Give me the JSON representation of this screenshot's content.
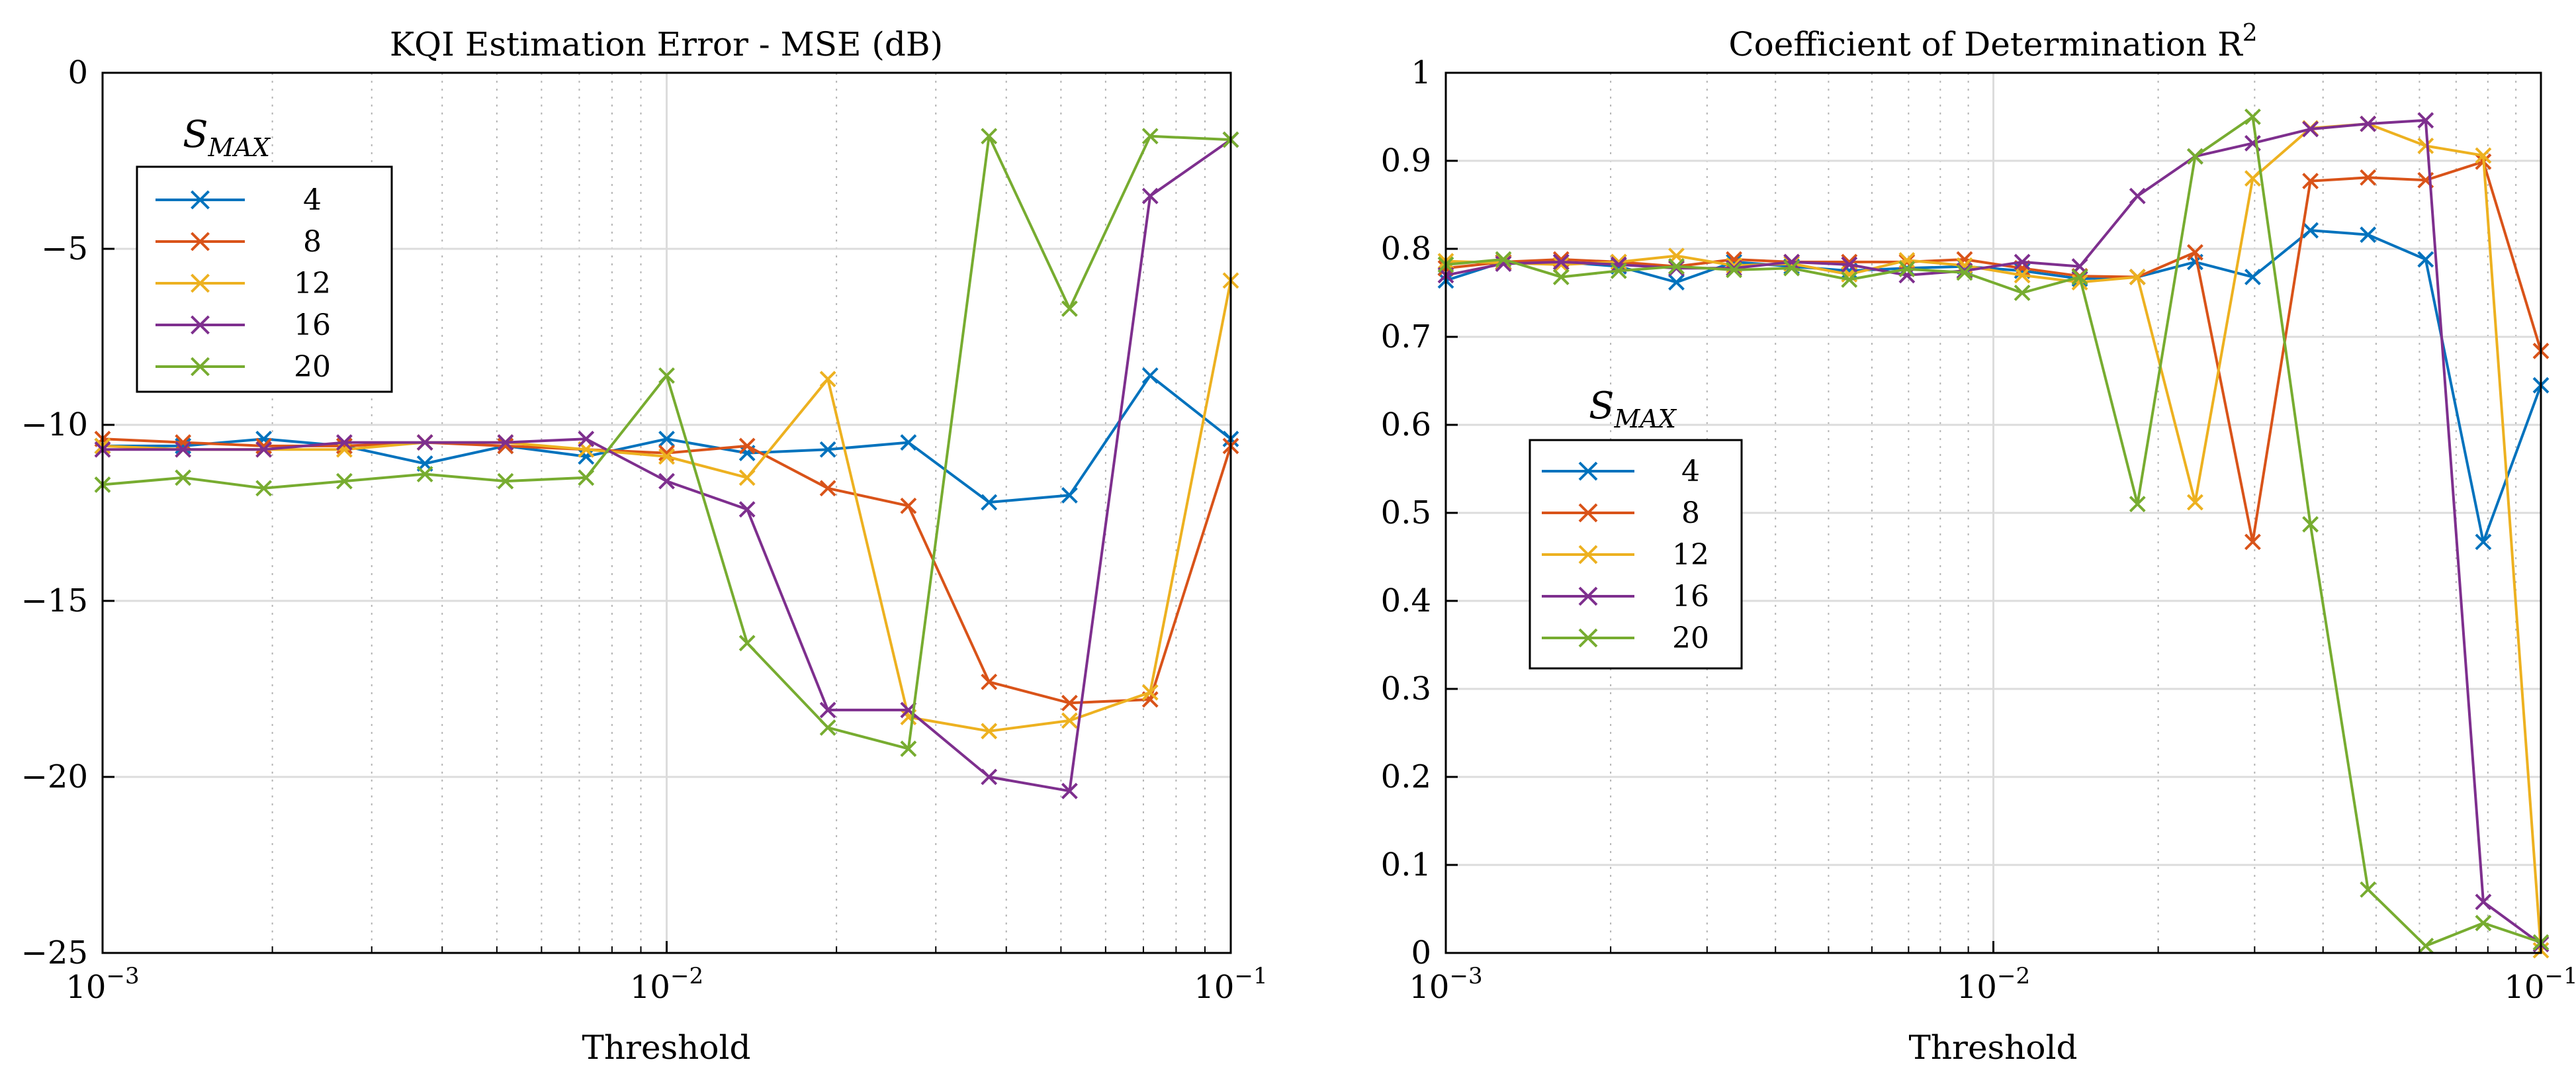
{
  "chart_data": [
    {
      "type": "line",
      "title": "KQI Estimation Error - MSE (dB)",
      "xlabel": "Threshold",
      "ylabel": "",
      "xscale": "log",
      "xlim": [
        0.001,
        0.1
      ],
      "ylim": [
        -25,
        0
      ],
      "yticks": [
        "0",
        "−5",
        "−10",
        "−15",
        "−20",
        "−25"
      ],
      "xticks": [
        {
          "base": "10",
          "exp": "−3"
        },
        {
          "base": "10",
          "exp": "−2"
        },
        {
          "base": "10",
          "exp": "−1"
        }
      ],
      "grid": true,
      "legend": {
        "title_main": "S",
        "title_sub": "MAX",
        "position": "top-left"
      },
      "x": [
        0.001,
        0.001389,
        0.001931,
        0.002683,
        0.003728,
        0.005179,
        0.007197,
        0.01,
        0.01389,
        0.01931,
        0.02683,
        0.03728,
        0.05179,
        0.07197,
        0.1
      ],
      "series": [
        {
          "name": "4",
          "color": "#0072BD",
          "values": [
            -10.6,
            -10.6,
            -10.4,
            -10.6,
            -11.1,
            -10.6,
            -10.9,
            -10.4,
            -10.8,
            -10.7,
            -10.5,
            -12.2,
            -12.0,
            -8.6,
            -10.4
          ]
        },
        {
          "name": "8",
          "color": "#D95319",
          "values": [
            -10.4,
            -10.5,
            -10.6,
            -10.6,
            -10.5,
            -10.6,
            -10.7,
            -10.8,
            -10.6,
            -11.8,
            -12.3,
            -17.3,
            -17.9,
            -17.8,
            -10.6
          ]
        },
        {
          "name": "12",
          "color": "#EDB120",
          "values": [
            -10.6,
            -10.7,
            -10.7,
            -10.7,
            -10.5,
            -10.5,
            -10.7,
            -10.9,
            -11.5,
            -8.7,
            -18.3,
            -18.7,
            -18.4,
            -17.6,
            -5.9
          ]
        },
        {
          "name": "16",
          "color": "#7E2F8E",
          "values": [
            -10.7,
            -10.7,
            -10.7,
            -10.5,
            -10.5,
            -10.5,
            -10.4,
            -11.6,
            -12.4,
            -18.1,
            -18.1,
            -20.0,
            -20.4,
            -3.5,
            -1.9
          ]
        },
        {
          "name": "20",
          "color": "#77AC30",
          "values": [
            -11.7,
            -11.5,
            -11.8,
            -11.6,
            -11.4,
            -11.6,
            -11.5,
            -8.6,
            -16.2,
            -18.6,
            -19.2,
            -1.8,
            -6.7,
            -1.8,
            -1.9
          ]
        }
      ]
    },
    {
      "type": "line",
      "title_main": "Coefficient of Determination R",
      "title_sup": "2",
      "xlabel": "Threshold",
      "ylabel": "",
      "xscale": "log",
      "xlim": [
        0.001,
        0.1
      ],
      "ylim": [
        0,
        1
      ],
      "yticks": [
        "1",
        "0.9",
        "0.8",
        "0.7",
        "0.6",
        "0.5",
        "0.4",
        "0.3",
        "0.2",
        "0.1",
        "0"
      ],
      "xticks": [
        {
          "base": "10",
          "exp": "−3"
        },
        {
          "base": "10",
          "exp": "−2"
        },
        {
          "base": "10",
          "exp": "−1"
        }
      ],
      "grid": true,
      "legend": {
        "title_main": "S",
        "title_sub": "MAX",
        "position": "middle-left"
      },
      "x": [
        0.001,
        0.001274,
        0.001624,
        0.002069,
        0.002637,
        0.00336,
        0.004281,
        0.005456,
        0.006952,
        0.008859,
        0.01129,
        0.01438,
        0.01833,
        0.02336,
        0.02976,
        0.03793,
        0.04833,
        0.06158,
        0.07848,
        0.1
      ],
      "series": [
        {
          "name": "4",
          "color": "#0072BD",
          "values": [
            0.764,
            0.785,
            0.785,
            0.78,
            0.762,
            0.785,
            0.78,
            0.775,
            0.778,
            0.78,
            0.775,
            0.766,
            0.768,
            0.785,
            0.768,
            0.821,
            0.816,
            0.788,
            0.467,
            0.645
          ]
        },
        {
          "name": "8",
          "color": "#D95319",
          "values": [
            0.778,
            0.785,
            0.788,
            0.785,
            0.78,
            0.788,
            0.785,
            0.785,
            0.785,
            0.788,
            0.778,
            0.769,
            0.768,
            0.796,
            0.467,
            0.877,
            0.881,
            0.878,
            0.899,
            0.684
          ]
        },
        {
          "name": "12",
          "color": "#EDB120",
          "values": [
            0.786,
            0.784,
            0.782,
            0.785,
            0.792,
            0.781,
            0.783,
            0.771,
            0.787,
            0.781,
            0.77,
            0.762,
            0.768,
            0.512,
            0.88,
            0.937,
            0.942,
            0.917,
            0.906,
            0.003
          ]
        },
        {
          "name": "16",
          "color": "#7E2F8E",
          "values": [
            0.77,
            0.783,
            0.785,
            0.782,
            0.778,
            0.778,
            0.785,
            0.782,
            0.77,
            0.775,
            0.785,
            0.78,
            0.86,
            0.905,
            0.92,
            0.936,
            0.942,
            0.946,
            0.058,
            0.01
          ]
        },
        {
          "name": "20",
          "color": "#77AC30",
          "values": [
            0.782,
            0.788,
            0.768,
            0.775,
            0.78,
            0.776,
            0.778,
            0.765,
            0.777,
            0.773,
            0.75,
            0.768,
            0.51,
            0.905,
            0.95,
            0.487,
            0.072,
            0.008,
            0.034,
            0.012
          ]
        }
      ]
    }
  ]
}
